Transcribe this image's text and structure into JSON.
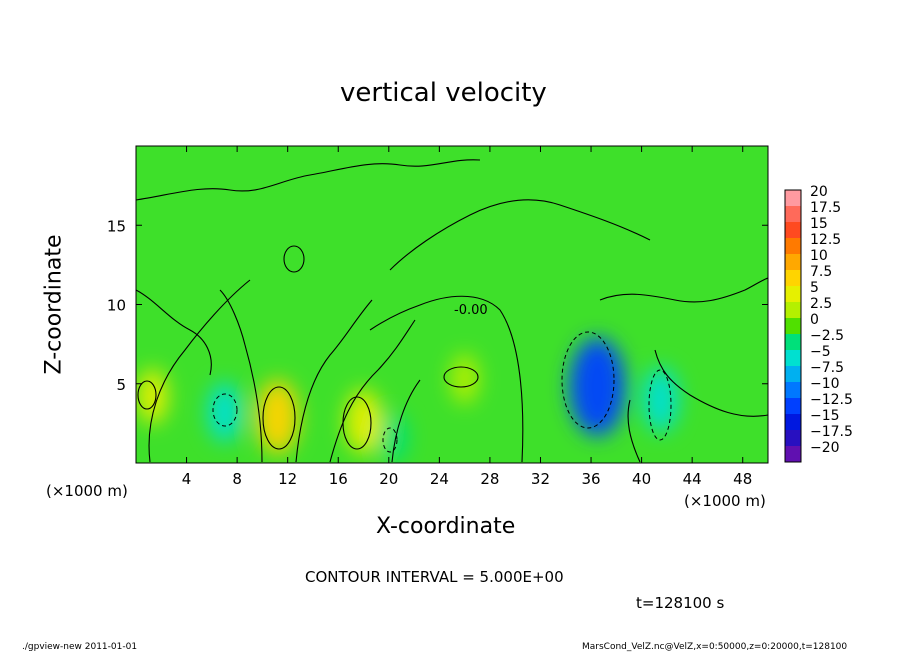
{
  "chart_data": {
    "type": "heatmap",
    "title": "vertical velocity",
    "xlabel": "X-coordinate",
    "ylabel": "Z-coordinate",
    "x_unit_label": "(×1000 m)",
    "z_unit_label": "(×1000 m)",
    "xlim": [
      0,
      50
    ],
    "ylim": [
      0,
      20
    ],
    "x_ticks": [
      4,
      8,
      12,
      16,
      20,
      24,
      28,
      32,
      36,
      40,
      44,
      48
    ],
    "y_ticks": [
      5,
      10,
      15
    ],
    "colorbar_levels": [
      "20",
      "17.5",
      "15",
      "12.5",
      "10",
      "7.5",
      "5",
      "2.5",
      "0",
      "−2.5",
      "−5",
      "−7.5",
      "−10",
      "−12.5",
      "−15",
      "−17.5",
      "−20"
    ],
    "colorbar_colors": [
      "#ff9aa0",
      "#ff6a5a",
      "#ff4a20",
      "#ff7a00",
      "#ffa800",
      "#ffd400",
      "#e6f000",
      "#b4f000",
      "#50e000",
      "#00e07a",
      "#00e0d0",
      "#00b0f0",
      "#0078ff",
      "#0040ff",
      "#0018e0",
      "#2810c0",
      "#6010b0"
    ],
    "contour_label": "-0.00",
    "fields": [
      {
        "name": "updraft",
        "x": 11.2,
        "z": 2.9,
        "peak_value": 8
      },
      {
        "name": "updraft",
        "x": 18,
        "z": 2.6,
        "peak_value": 6
      },
      {
        "name": "updraft",
        "x": 1.3,
        "z": 4.2,
        "peak_value": 4
      },
      {
        "name": "updraft",
        "x": 26,
        "z": 5.3,
        "peak_value": 3
      },
      {
        "name": "downdraft",
        "x": 36.5,
        "z": 4.8,
        "peak_value": -13
      },
      {
        "name": "downdraft",
        "x": 41.5,
        "z": 4,
        "peak_value": -6
      },
      {
        "name": "downdraft",
        "x": 7,
        "z": 3.2,
        "peak_value": -5
      },
      {
        "name": "downdraft",
        "x": 20.4,
        "z": 1.6,
        "peak_value": -3
      }
    ]
  },
  "annotations": {
    "contour_interval": "CONTOUR INTERVAL = 5.000E+00",
    "time": "t=128100 s",
    "footer_left": "./gpview-new   2011-01-01",
    "footer_right": "MarsCond_VelZ.nc@VelZ,x=0:50000,z=0:20000,t=128100"
  }
}
